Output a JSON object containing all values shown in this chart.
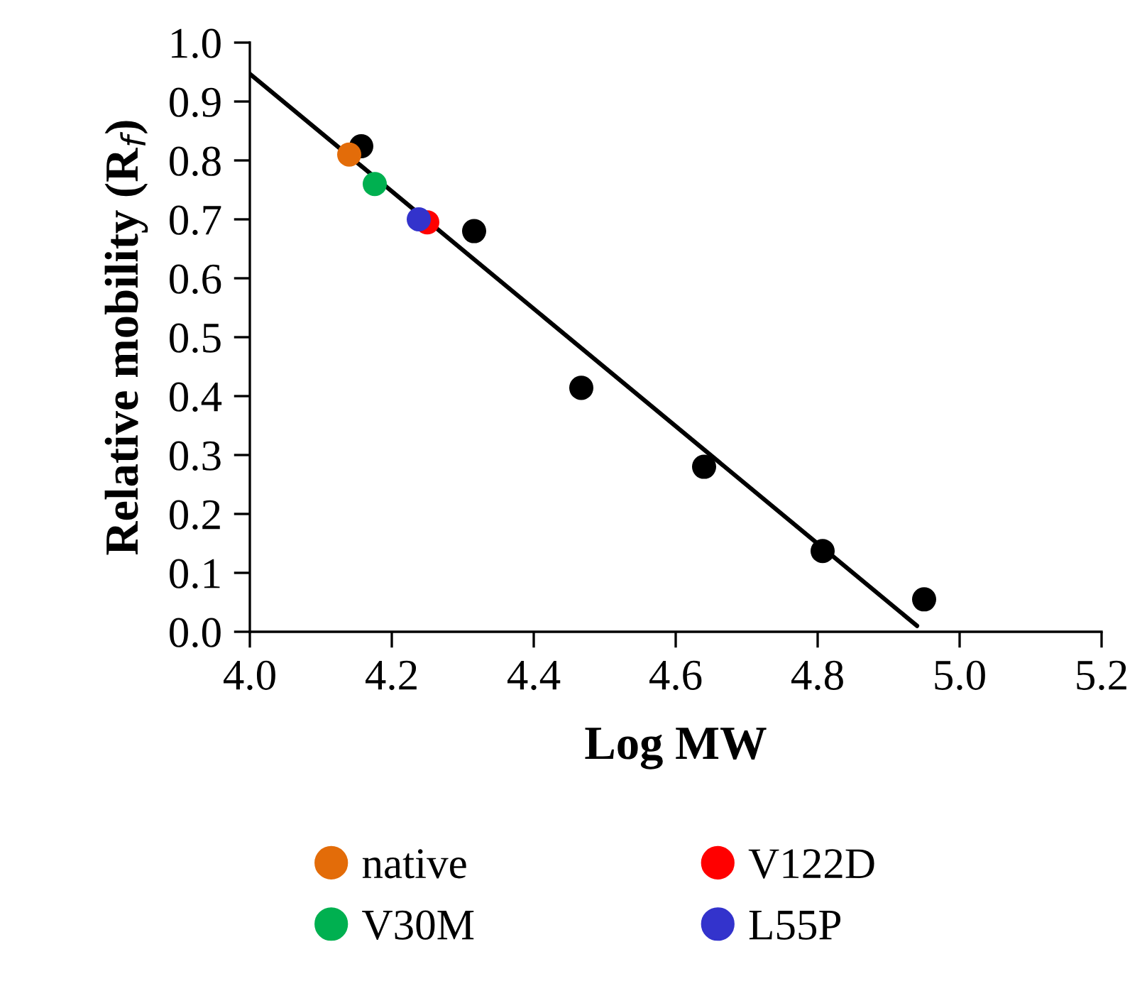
{
  "chart_data": {
    "type": "scatter",
    "xlabel": "Log MW",
    "ylabel": "Relative mobility (R$_{f}$)",
    "xlim": [
      4.0,
      5.2
    ],
    "ylim": [
      0.0,
      1.0
    ],
    "xticks": [
      {
        "value": 4,
        "label": "4.0"
      },
      4.2,
      4.4,
      4.6,
      4.8,
      {
        "value": 5,
        "label": "5.0"
      },
      5.2
    ],
    "yticks": [
      {
        "value": 0,
        "label": "0.0"
      },
      0.1,
      0.2,
      0.3,
      0.4,
      0.5,
      0.6,
      0.7,
      0.8,
      0.9,
      {
        "value": 1,
        "label": "1.0"
      }
    ],
    "grid": false,
    "legend": "bottom",
    "marker": "circle",
    "series": [
      {
        "type": "line",
        "marker": "none",
        "color": "#000000",
        "x": [
          4.0,
          4.94
        ],
        "values": [
          0.947,
          0.01
        ]
      },
      {
        "color": "#000000",
        "x": [
          4.157,
          4.316,
          4.467,
          4.64,
          4.807,
          4.95
        ],
        "values": [
          0.824,
          0.68,
          0.414,
          0.28,
          0.137,
          0.055
        ]
      },
      {
        "name": "native",
        "color": "#e36c09",
        "x": [
          4.14
        ],
        "values": [
          0.81
        ]
      },
      {
        "name": "V122D",
        "color": "#ff0000",
        "x": [
          4.25
        ],
        "values": [
          0.695
        ]
      },
      {
        "name": "V30M",
        "color": "#00b050",
        "x": [
          4.176
        ],
        "values": [
          0.76
        ]
      },
      {
        "name": "L55P",
        "color": "#3333cc",
        "x": [
          4.238
        ],
        "values": [
          0.7
        ]
      }
    ]
  }
}
